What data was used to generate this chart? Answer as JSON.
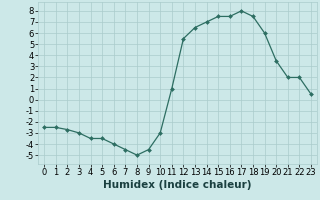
{
  "x": [
    0,
    1,
    2,
    3,
    4,
    5,
    6,
    7,
    8,
    9,
    10,
    11,
    12,
    13,
    14,
    15,
    16,
    17,
    18,
    19,
    20,
    21,
    22,
    23
  ],
  "y": [
    -2.5,
    -2.5,
    -2.7,
    -3.0,
    -3.5,
    -3.5,
    -4.0,
    -4.5,
    -5.0,
    -4.5,
    -3.0,
    1.0,
    5.5,
    6.5,
    7.0,
    7.5,
    7.5,
    8.0,
    7.5,
    6.0,
    3.5,
    2.0,
    2.0,
    0.5
  ],
  "xlabel": "Humidex (Indice chaleur)",
  "ylim": [
    -5.8,
    8.8
  ],
  "xlim": [
    -0.5,
    23.5
  ],
  "yticks": [
    -5,
    -4,
    -3,
    -2,
    -1,
    0,
    1,
    2,
    3,
    4,
    5,
    6,
    7,
    8
  ],
  "xticks": [
    0,
    1,
    2,
    3,
    4,
    5,
    6,
    7,
    8,
    9,
    10,
    11,
    12,
    13,
    14,
    15,
    16,
    17,
    18,
    19,
    20,
    21,
    22,
    23
  ],
  "line_color": "#2d6e62",
  "marker_color": "#2d6e62",
  "bg_color": "#cce8e8",
  "grid_color": "#aacccc",
  "xlabel_fontsize": 7.5,
  "tick_fontsize": 6.0
}
